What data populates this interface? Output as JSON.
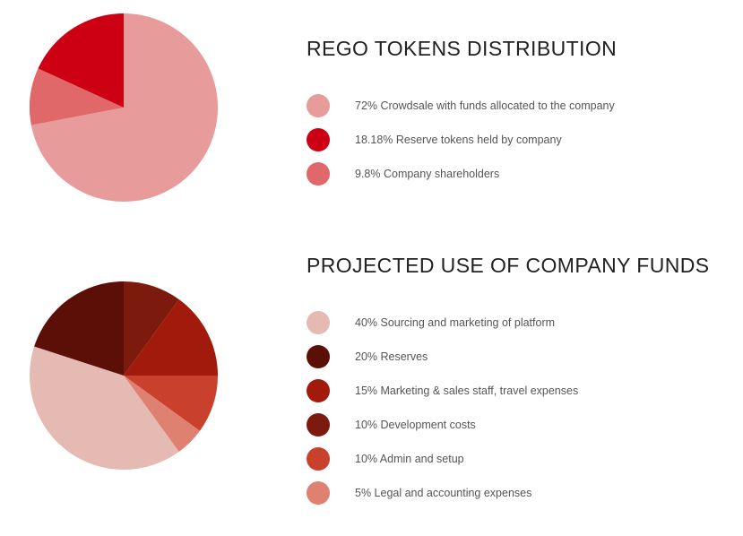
{
  "chart_data": [
    {
      "type": "pie",
      "title": "REGO TOKENS DISTRIBUTION",
      "slices": [
        {
          "label": "72% Crowdsale with funds allocated to the company",
          "value": 72,
          "color": "#e89b9b"
        },
        {
          "label": "18.18% Reserve tokens held by company",
          "value": 18.18,
          "color": "#cc0012"
        },
        {
          "label": "9.8% Company shareholders",
          "value": 9.8,
          "color": "#e06868"
        }
      ],
      "legend_position": "right"
    },
    {
      "type": "pie",
      "title": "PROJECTED USE OF COMPANY FUNDS",
      "slices": [
        {
          "label": "40% Sourcing and marketing of platform",
          "value": 40,
          "color": "#e4bab2"
        },
        {
          "label": "20% Reserves",
          "value": 20,
          "color": "#5c0f06"
        },
        {
          "label": "15% Marketing & sales staff, travel expenses",
          "value": 15,
          "color": "#a11a0b"
        },
        {
          "label": "10% Development costs",
          "value": 10,
          "color": "#7d1a0e"
        },
        {
          "label": "10% Admin and setup",
          "value": 10,
          "color": "#c9412d"
        },
        {
          "label": "5% Legal and accounting expenses",
          "value": 5,
          "color": "#df8170"
        }
      ],
      "legend_position": "right"
    }
  ]
}
